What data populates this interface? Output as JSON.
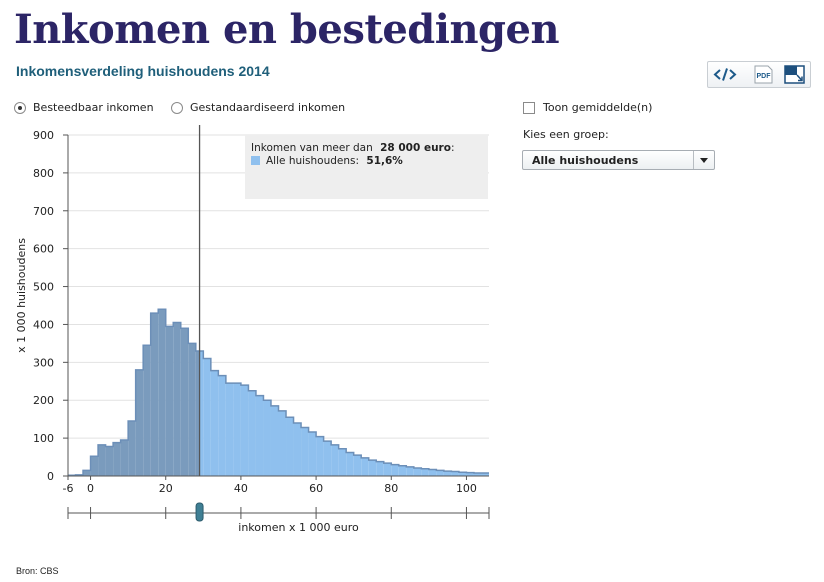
{
  "page": {
    "title": "Inkomen en bestedingen",
    "subtitle": "Inkomensverdeling huishoudens 2014",
    "source": "Bron: CBS"
  },
  "toolbar": {
    "embed_icon": "code-icon",
    "pdf_label": "PDF",
    "expand_icon": "expand-icon"
  },
  "controls": {
    "radio_options": [
      {
        "label": "Besteedbaar inkomen",
        "selected": true
      },
      {
        "label": "Gestandaardiseerd inkomen",
        "selected": false
      }
    ],
    "checkbox_label": "Toon gemiddelde(n)",
    "checkbox_checked": false,
    "group_label": "Kies een groep:",
    "group_selected": "Alle huishoudens"
  },
  "tooltip": {
    "line1_prefix": "Inkomen van meer dan",
    "line1_value": "28 000 euro",
    "line1_suffix": ":",
    "series_label": "Alle huishoudens:",
    "series_value": "51,6%"
  },
  "chart_data": {
    "type": "bar",
    "xlabel": "inkomen x 1 000 euro",
    "ylabel": "x 1 000 huishoudens",
    "xlim": [
      -6,
      106
    ],
    "ylim": [
      0,
      900
    ],
    "x_ticks": [
      -6,
      0,
      20,
      40,
      60,
      80,
      100
    ],
    "y_ticks": [
      0,
      100,
      200,
      300,
      400,
      500,
      600,
      700,
      800,
      900
    ],
    "grid": true,
    "bin_width": 2,
    "split_value": 29,
    "colors": {
      "below": "#7a9bbd",
      "above": "#8fc0ee",
      "edge": "#6c8fb8",
      "gridline": "#e2e2e2",
      "marker_line": "#555555",
      "handle": "#3f7f94"
    },
    "bins": [
      {
        "x0": -6,
        "x1": -4,
        "value": 2
      },
      {
        "x0": -4,
        "x1": -2,
        "value": 3
      },
      {
        "x0": -2,
        "x1": 0,
        "value": 15
      },
      {
        "x0": 0,
        "x1": 2,
        "value": 52
      },
      {
        "x0": 2,
        "x1": 4,
        "value": 82
      },
      {
        "x0": 4,
        "x1": 6,
        "value": 78
      },
      {
        "x0": 6,
        "x1": 8,
        "value": 88
      },
      {
        "x0": 8,
        "x1": 10,
        "value": 95
      },
      {
        "x0": 10,
        "x1": 12,
        "value": 145
      },
      {
        "x0": 12,
        "x1": 14,
        "value": 280
      },
      {
        "x0": 14,
        "x1": 16,
        "value": 345
      },
      {
        "x0": 16,
        "x1": 18,
        "value": 430
      },
      {
        "x0": 18,
        "x1": 20,
        "value": 440
      },
      {
        "x0": 20,
        "x1": 22,
        "value": 395
      },
      {
        "x0": 22,
        "x1": 24,
        "value": 405
      },
      {
        "x0": 24,
        "x1": 26,
        "value": 390
      },
      {
        "x0": 26,
        "x1": 28,
        "value": 350
      },
      {
        "x0": 28,
        "x1": 30,
        "value": 330
      },
      {
        "x0": 30,
        "x1": 32,
        "value": 310
      },
      {
        "x0": 32,
        "x1": 34,
        "value": 278
      },
      {
        "x0": 34,
        "x1": 36,
        "value": 265
      },
      {
        "x0": 36,
        "x1": 38,
        "value": 245
      },
      {
        "x0": 38,
        "x1": 40,
        "value": 245
      },
      {
        "x0": 40,
        "x1": 42,
        "value": 240
      },
      {
        "x0": 42,
        "x1": 44,
        "value": 225
      },
      {
        "x0": 44,
        "x1": 46,
        "value": 212
      },
      {
        "x0": 46,
        "x1": 48,
        "value": 200
      },
      {
        "x0": 48,
        "x1": 50,
        "value": 185
      },
      {
        "x0": 50,
        "x1": 52,
        "value": 172
      },
      {
        "x0": 52,
        "x1": 54,
        "value": 155
      },
      {
        "x0": 54,
        "x1": 56,
        "value": 140
      },
      {
        "x0": 56,
        "x1": 58,
        "value": 128
      },
      {
        "x0": 58,
        "x1": 60,
        "value": 116
      },
      {
        "x0": 60,
        "x1": 62,
        "value": 104
      },
      {
        "x0": 62,
        "x1": 64,
        "value": 92
      },
      {
        "x0": 64,
        "x1": 66,
        "value": 82
      },
      {
        "x0": 66,
        "x1": 68,
        "value": 72
      },
      {
        "x0": 68,
        "x1": 70,
        "value": 62
      },
      {
        "x0": 70,
        "x1": 72,
        "value": 55
      },
      {
        "x0": 72,
        "x1": 74,
        "value": 48
      },
      {
        "x0": 74,
        "x1": 76,
        "value": 42
      },
      {
        "x0": 76,
        "x1": 78,
        "value": 38
      },
      {
        "x0": 78,
        "x1": 80,
        "value": 34
      },
      {
        "x0": 80,
        "x1": 82,
        "value": 30
      },
      {
        "x0": 82,
        "x1": 84,
        "value": 27
      },
      {
        "x0": 84,
        "x1": 86,
        "value": 24
      },
      {
        "x0": 86,
        "x1": 88,
        "value": 21
      },
      {
        "x0": 88,
        "x1": 90,
        "value": 19
      },
      {
        "x0": 90,
        "x1": 92,
        "value": 17
      },
      {
        "x0": 92,
        "x1": 94,
        "value": 15
      },
      {
        "x0": 94,
        "x1": 96,
        "value": 13
      },
      {
        "x0": 96,
        "x1": 98,
        "value": 12
      },
      {
        "x0": 98,
        "x1": 100,
        "value": 10
      },
      {
        "x0": 100,
        "x1": 102,
        "value": 9
      },
      {
        "x0": 102,
        "x1": 104,
        "value": 8
      },
      {
        "x0": 104,
        "x1": 106,
        "value": 8
      }
    ]
  }
}
